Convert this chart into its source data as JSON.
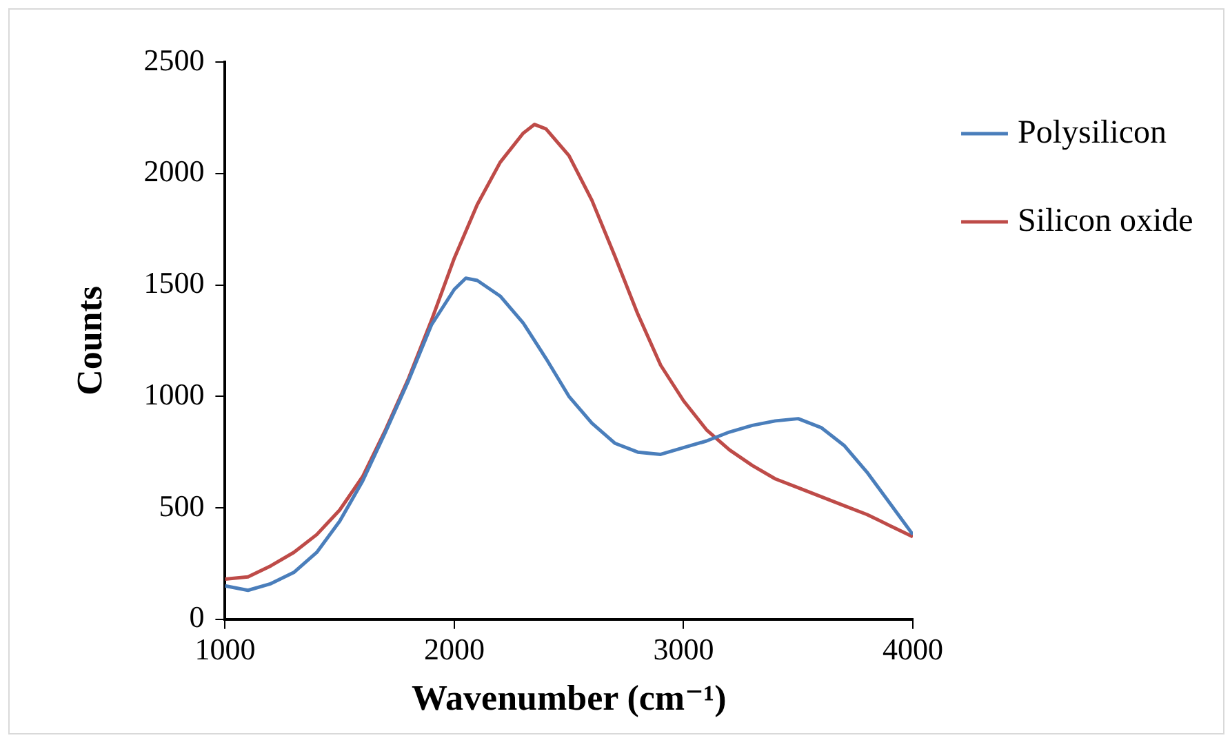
{
  "chart_data": {
    "type": "line",
    "xlabel": "Wavenumber (cm⁻¹)",
    "ylabel": "Counts",
    "xlim": [
      1000,
      4000
    ],
    "xticks": [
      1000,
      2000,
      3000,
      4000
    ],
    "ylim": [
      0,
      2500
    ],
    "yticks": [
      0,
      500,
      1000,
      1500,
      2000,
      2500
    ],
    "grid": false,
    "legend": "top right",
    "marker": "none",
    "line_style": "solid",
    "series": [
      {
        "name": "Polysilicon",
        "color": "#4a7ebb",
        "x": [
          1000,
          1100,
          1200,
          1300,
          1400,
          1500,
          1600,
          1700,
          1800,
          1900,
          2000,
          2050,
          2100,
          2200,
          2300,
          2400,
          2500,
          2600,
          2700,
          2800,
          2900,
          3000,
          3100,
          3200,
          3300,
          3400,
          3500,
          3600,
          3700,
          3800,
          3900,
          4000
        ],
        "values": [
          150,
          130,
          160,
          210,
          300,
          440,
          620,
          840,
          1070,
          1320,
          1480,
          1530,
          1520,
          1450,
          1330,
          1170,
          1000,
          880,
          790,
          750,
          740,
          770,
          800,
          840,
          870,
          890,
          900,
          860,
          780,
          660,
          520,
          380
        ]
      },
      {
        "name": "Silicon oxide",
        "color": "#be4b48",
        "x": [
          1000,
          1100,
          1200,
          1300,
          1400,
          1500,
          1600,
          1700,
          1800,
          1900,
          2000,
          2100,
          2200,
          2300,
          2350,
          2400,
          2500,
          2600,
          2700,
          2800,
          2900,
          3000,
          3100,
          3200,
          3300,
          3400,
          3500,
          3600,
          3700,
          3800,
          3900,
          4000
        ],
        "values": [
          180,
          190,
          240,
          300,
          380,
          490,
          640,
          850,
          1080,
          1340,
          1620,
          1860,
          2050,
          2180,
          2220,
          2200,
          2080,
          1880,
          1630,
          1370,
          1140,
          980,
          850,
          760,
          690,
          630,
          590,
          550,
          510,
          470,
          420,
          370
        ]
      }
    ]
  }
}
